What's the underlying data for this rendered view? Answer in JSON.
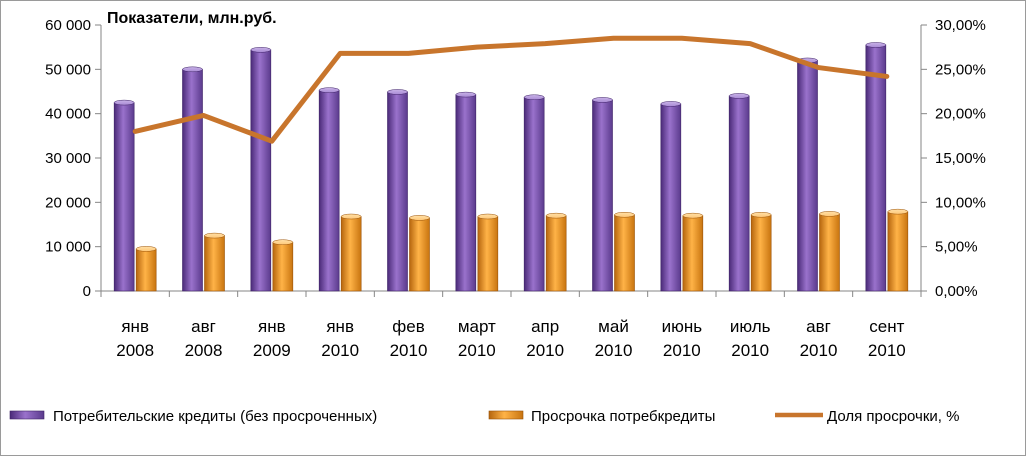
{
  "chart_data": {
    "type": "bar",
    "title": "Показатели, млн.руб.",
    "categories": [
      [
        "янв",
        "2008"
      ],
      [
        "авг",
        "2008"
      ],
      [
        "янв",
        "2009"
      ],
      [
        "янв",
        "2010"
      ],
      [
        "фев",
        "2010"
      ],
      [
        "март",
        "2010"
      ],
      [
        "апр",
        "2010"
      ],
      [
        "май",
        "2010"
      ],
      [
        "июнь",
        "2010"
      ],
      [
        "июль",
        "2010"
      ],
      [
        "авг",
        "2010"
      ],
      [
        "сент",
        "2010"
      ]
    ],
    "series": [
      {
        "name": "Потребительские кредиты (без просроченных)",
        "type": "bar",
        "axis": "left",
        "color": "#7b52ab",
        "values": [
          42500,
          50000,
          54400,
          45300,
          44900,
          44300,
          43700,
          43100,
          42200,
          44000,
          52000,
          55500
        ]
      },
      {
        "name": "Просрочка потребкредиты",
        "type": "bar",
        "axis": "left",
        "color": "#f29422",
        "values": [
          9500,
          12500,
          11000,
          16800,
          16500,
          16800,
          17000,
          17200,
          17000,
          17200,
          17400,
          17900
        ]
      },
      {
        "name": "Доля просрочки, %",
        "type": "line",
        "axis": "right",
        "color": "#c8752c",
        "values": [
          18.0,
          19.8,
          16.9,
          26.8,
          26.8,
          27.5,
          27.9,
          28.5,
          28.5,
          27.9,
          25.2,
          24.2
        ]
      }
    ],
    "y_left": {
      "ylim": [
        0,
        60000
      ],
      "ticks": [
        0,
        10000,
        20000,
        30000,
        40000,
        50000,
        60000
      ],
      "tick_labels": [
        "0",
        "10 000",
        "20 000",
        "30 000",
        "40 000",
        "50 000",
        "60 000"
      ]
    },
    "y_right": {
      "ylim": [
        0,
        30
      ],
      "ticks": [
        0,
        5,
        10,
        15,
        20,
        25,
        30
      ],
      "tick_labels": [
        "0,00%",
        "5,00%",
        "10,00%",
        "15,00%",
        "20,00%",
        "25,00%",
        "30,00%"
      ]
    },
    "grid": false,
    "legend_position": "bottom"
  }
}
